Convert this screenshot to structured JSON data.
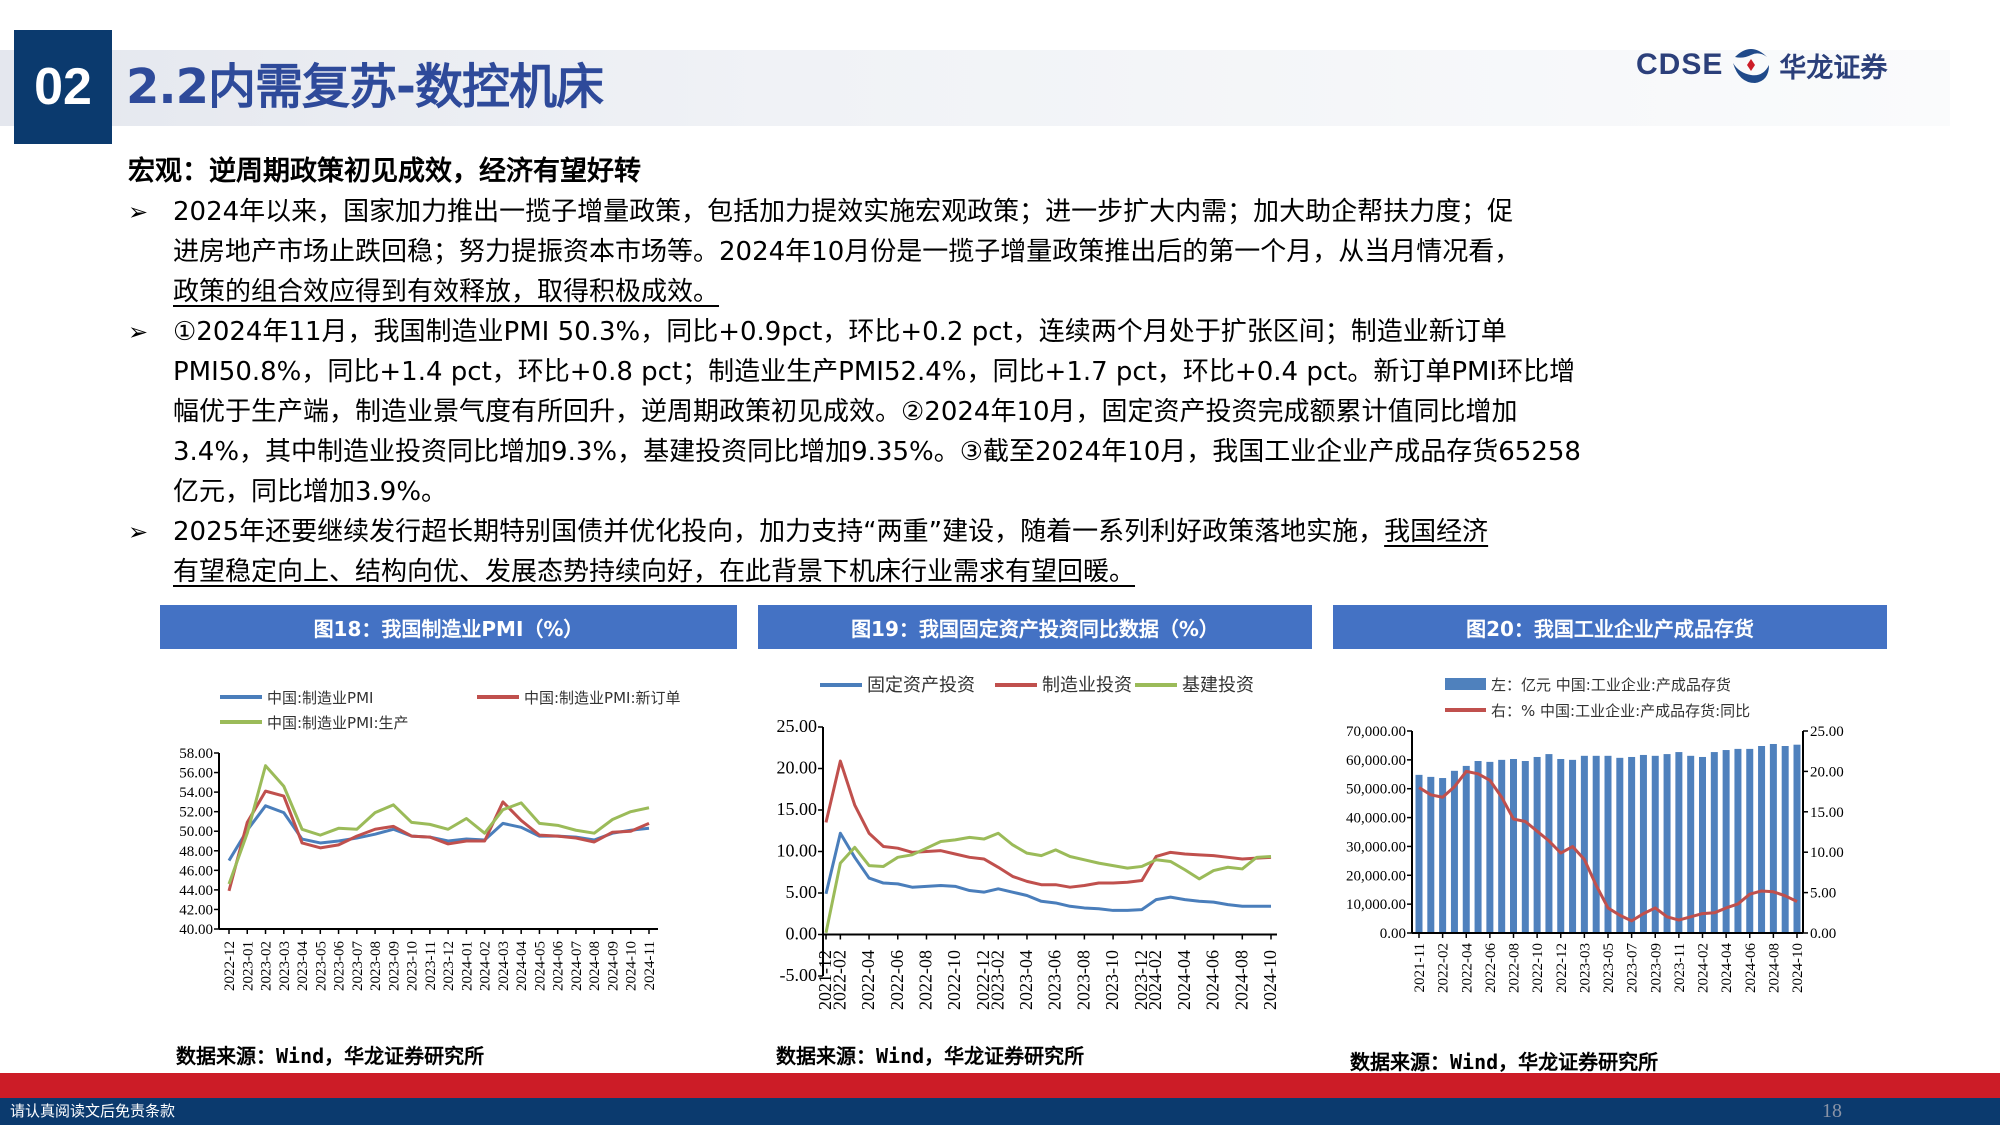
{
  "header": {
    "section_number": "02",
    "title": "2.2内需复苏-数控机床",
    "logo_text": "CDSE",
    "logo_cn": "华龙证券",
    "accent": "#0b3a6e",
    "title_color": "#2e4a9a"
  },
  "subheading": "宏观：逆周期政策初见成效，经济有望好转",
  "bullets": [
    {
      "lines": [
        [
          {
            "t": "2024年以来，国家加力推出一揽子增量政策，包括加力提效实施宏观政策；进一步扩大内需；加大助企帮扶力度；促",
            "u": false
          }
        ],
        [
          {
            "t": "进房地产市场止跌回稳；努力提振资本市场等。2024年10月份是一揽子增量政策推出后的第一个月，从当月情况看，",
            "u": false
          }
        ],
        [
          {
            "t": "政策的组合效应得到有效释放，取得积极成效。",
            "u": true
          }
        ]
      ]
    },
    {
      "lines": [
        [
          {
            "t": "①2024年11月，我国制造业PMI 50.3%，同比+0.9pct，环比+0.2 pct，连续两个月处于扩张区间；制造业新订单",
            "u": false
          }
        ],
        [
          {
            "t": "PMI50.8%，同比+1.4 pct，环比+0.8 pct；制造业生产PMI52.4%，同比+1.7 pct，环比+0.4 pct。新订单PMI环比增",
            "u": false
          }
        ],
        [
          {
            "t": "幅优于生产端，制造业景气度有所回升，逆周期政策初见成效。②2024年10月，固定资产投资完成额累计值同比增加",
            "u": false
          }
        ],
        [
          {
            "t": "3.4%，其中制造业投资同比增加9.3%，基建投资同比增加9.35%。③截至2024年10月，我国工业企业产成品存货65258",
            "u": false
          }
        ],
        [
          {
            "t": "亿元，同比增加3.9%。",
            "u": false
          }
        ]
      ]
    },
    {
      "lines": [
        [
          {
            "t": "2025年还要继续发行超长期特别国债并优化投向，加力支持“两重”建设，随着一系列利好政策落地实施，",
            "u": false
          },
          {
            "t": "我国经济",
            "u": true
          }
        ],
        [
          {
            "t": "有望稳定向上、结构向优、发展态势持续向好，在此背景下机床行业需求有望回暖。",
            "u": true
          }
        ]
      ]
    }
  ],
  "captions": [
    "图18：我国制造业PMI（%）",
    "图19：我国固定资产投资同比数据（%）",
    "图20：我国工业企业产成品存货"
  ],
  "sources": [
    "数据来源：Wind，华龙证券研究所",
    "数据来源：Wind，华龙证券研究所",
    "数据来源：Wind，华龙证券研究所"
  ],
  "footer": {
    "disclaimer": "请认真阅读文后免责条款",
    "page_number": "18"
  },
  "chart_data": [
    {
      "type": "line",
      "x": [
        "2022-12",
        "2023-01",
        "2023-02",
        "2023-03",
        "2023-04",
        "2023-05",
        "2023-06",
        "2023-07",
        "2023-08",
        "2023-09",
        "2023-10",
        "2023-11",
        "2023-12",
        "2024-01",
        "2024-02",
        "2024-03",
        "2024-04",
        "2024-05",
        "2024-06",
        "2024-07",
        "2024-08",
        "2024-09",
        "2024-10",
        "2024-11"
      ],
      "ylim": [
        40,
        58
      ],
      "yticks": [
        "40.00",
        "42.00",
        "44.00",
        "46.00",
        "48.00",
        "50.00",
        "52.00",
        "54.00",
        "56.00",
        "58.00"
      ],
      "legend": "top",
      "grid": false,
      "series": [
        {
          "name": "中国:制造业PMI",
          "color": "#4a7ebb",
          "values": [
            47.0,
            50.1,
            52.6,
            51.9,
            49.2,
            48.8,
            49.0,
            49.3,
            49.7,
            50.2,
            49.5,
            49.4,
            49.0,
            49.2,
            49.1,
            50.8,
            50.4,
            49.5,
            49.5,
            49.4,
            49.1,
            49.8,
            50.1,
            50.3
          ]
        },
        {
          "name": "中国:制造业PMI:新订单",
          "color": "#c0504d",
          "values": [
            43.9,
            50.9,
            54.1,
            53.6,
            48.8,
            48.3,
            48.6,
            49.5,
            50.2,
            50.5,
            49.5,
            49.4,
            48.7,
            49.0,
            49.0,
            53.0,
            51.1,
            49.6,
            49.5,
            49.3,
            48.9,
            49.9,
            50.0,
            50.8
          ]
        },
        {
          "name": "中国:制造业PMI:生产",
          "color": "#9bbb59",
          "values": [
            44.6,
            49.8,
            56.7,
            54.6,
            50.2,
            49.6,
            50.3,
            50.2,
            51.9,
            52.7,
            50.9,
            50.7,
            50.2,
            51.3,
            49.8,
            52.2,
            52.9,
            50.8,
            50.6,
            50.1,
            49.8,
            51.2,
            52.0,
            52.4
          ]
        }
      ]
    },
    {
      "type": "line",
      "x": [
        "2021-12",
        "2022-02",
        "2022-03",
        "2022-04",
        "2022-05",
        "2022-06",
        "2022-07",
        "2022-08",
        "2022-09",
        "2022-10",
        "2022-11",
        "2022-12",
        "2023-02",
        "2023-03",
        "2023-04",
        "2023-05",
        "2023-06",
        "2023-07",
        "2023-08",
        "2023-09",
        "2023-10",
        "2023-11",
        "2023-12",
        "2024-02",
        "2024-03",
        "2024-04",
        "2024-05",
        "2024-06",
        "2024-07",
        "2024-08",
        "2024-09",
        "2024-10"
      ],
      "xticks": [
        "2021-12",
        "2022-02",
        "2022-04",
        "2022-06",
        "2022-08",
        "2022-10",
        "2022-12",
        "2023-02",
        "2023-04",
        "2023-06",
        "2023-08",
        "2023-10",
        "2023-12",
        "2024-02",
        "2024-04",
        "2024-06",
        "2024-08",
        "2024-10"
      ],
      "ylim": [
        -5,
        25
      ],
      "yticks": [
        "-5.00",
        "0.00",
        "5.00",
        "10.00",
        "15.00",
        "20.00",
        "25.00"
      ],
      "legend": "top",
      "grid": false,
      "series": [
        {
          "name": "固定资产投资",
          "color": "#4a7ebb",
          "values": [
            4.9,
            12.2,
            9.3,
            6.8,
            6.2,
            6.1,
            5.7,
            5.8,
            5.9,
            5.8,
            5.3,
            5.1,
            5.5,
            5.1,
            4.7,
            4.0,
            3.8,
            3.4,
            3.2,
            3.1,
            2.9,
            2.9,
            3.0,
            4.2,
            4.5,
            4.2,
            4.0,
            3.9,
            3.6,
            3.4,
            3.4,
            3.4
          ]
        },
        {
          "name": "制造业投资",
          "color": "#c0504d",
          "values": [
            13.5,
            20.9,
            15.6,
            12.2,
            10.6,
            10.4,
            9.9,
            10.0,
            10.1,
            9.7,
            9.3,
            9.1,
            8.1,
            7.0,
            6.4,
            6.0,
            6.0,
            5.7,
            5.9,
            6.2,
            6.2,
            6.3,
            6.5,
            9.4,
            9.9,
            9.7,
            9.6,
            9.5,
            9.3,
            9.1,
            9.2,
            9.3
          ]
        },
        {
          "name": "基建投资",
          "color": "#9bbb59",
          "values": [
            0.2,
            8.6,
            10.5,
            8.3,
            8.2,
            9.3,
            9.6,
            10.4,
            11.2,
            11.4,
            11.7,
            11.5,
            12.2,
            10.8,
            9.8,
            9.5,
            10.2,
            9.4,
            9.0,
            8.6,
            8.3,
            8.0,
            8.2,
            9.0,
            8.8,
            7.8,
            6.7,
            7.7,
            8.1,
            7.9,
            9.3,
            9.4
          ]
        }
      ]
    },
    {
      "type": "bar+line",
      "x": [
        "2021-11",
        "2021-12",
        "2022-02",
        "2022-03",
        "2022-04",
        "2022-05",
        "2022-06",
        "2022-07",
        "2022-08",
        "2022-09",
        "2022-10",
        "2022-11",
        "2022-12",
        "2023-02",
        "2023-03",
        "2023-04",
        "2023-05",
        "2023-06",
        "2023-07",
        "2023-08",
        "2023-09",
        "2023-10",
        "2023-11",
        "2023-12",
        "2024-02",
        "2024-03",
        "2024-04",
        "2024-05",
        "2024-06",
        "2024-07",
        "2024-08",
        "2024-09",
        "2024-10"
      ],
      "xticks": [
        "2021-11",
        "2022-02",
        "2022-04",
        "2022-06",
        "2022-08",
        "2022-10",
        "2022-12",
        "2023-03",
        "2023-05",
        "2023-07",
        "2023-09",
        "2023-11",
        "2024-02",
        "2024-04",
        "2024-06",
        "2024-08",
        "2024-10"
      ],
      "ylim_left": [
        0,
        70000
      ],
      "yticks_left": [
        "0.00",
        "10,000.00",
        "20,000.00",
        "30,000.00",
        "40,000.00",
        "50,000.00",
        "60,000.00",
        "70,000.00"
      ],
      "ylim_right": [
        0,
        25
      ],
      "yticks_right": [
        "0.00",
        "5.00",
        "10.00",
        "15.00",
        "20.00",
        "25.00"
      ],
      "legend": "top",
      "grid": false,
      "series": [
        {
          "name": "左：亿元 中国:工业企业:产成品存货",
          "type": "bar",
          "axis": "left",
          "color": "#4f81bd",
          "values": [
            54800,
            54100,
            53700,
            56200,
            57900,
            59600,
            59300,
            60000,
            60300,
            59600,
            61000,
            62000,
            60300,
            60000,
            61400,
            61400,
            61400,
            60700,
            61000,
            61700,
            61400,
            62000,
            62700,
            61400,
            61000,
            62700,
            63400,
            63800,
            63800,
            64800,
            65500,
            64800,
            65258
          ]
        },
        {
          "name": "右：% 中国:工业企业:产成品存货:同比",
          "type": "line",
          "axis": "right",
          "color": "#c0504d",
          "values": [
            18.0,
            17.1,
            16.8,
            18.1,
            20.0,
            19.7,
            18.9,
            16.8,
            14.1,
            13.8,
            12.6,
            11.4,
            9.9,
            10.7,
            9.1,
            5.9,
            3.1,
            2.2,
            1.5,
            2.4,
            3.1,
            2.0,
            1.6,
            2.0,
            2.4,
            2.5,
            3.1,
            3.6,
            4.8,
            5.2,
            5.1,
            4.6,
            3.9
          ]
        }
      ]
    }
  ]
}
